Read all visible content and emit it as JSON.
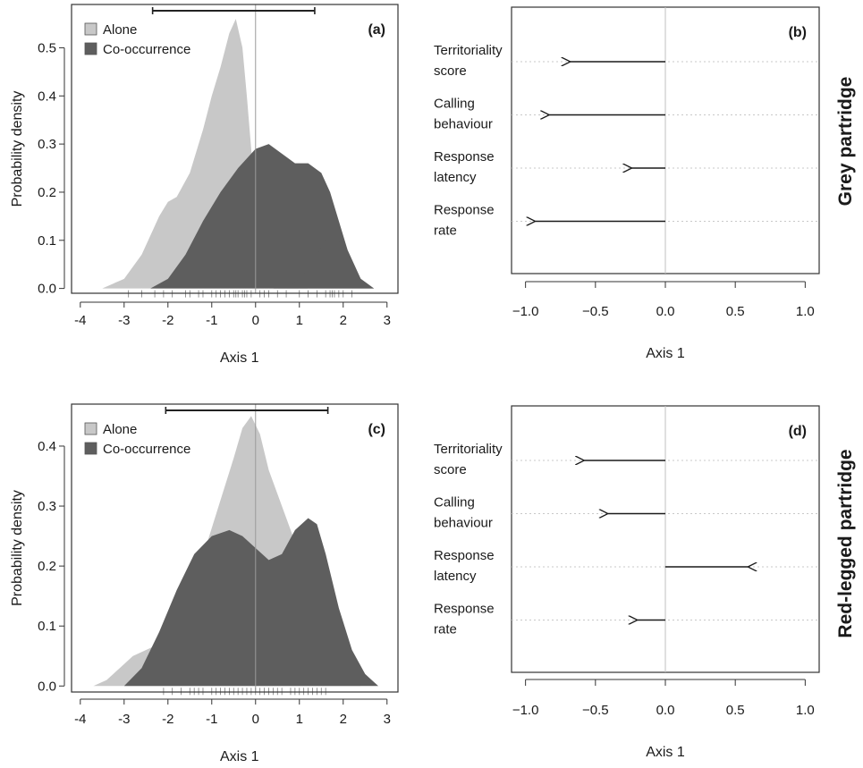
{
  "row_labels": [
    "Grey partridge",
    "Red-legged partridge"
  ],
  "chart_data": [
    {
      "id": "a",
      "panel_label": "(a)",
      "type": "area",
      "xlabel": "Axis 1",
      "ylabel": "Probability density",
      "xlim": [
        -4.2,
        3.25
      ],
      "ylim": [
        -0.01,
        0.59
      ],
      "xticks": [
        -4,
        -3,
        -2,
        -1,
        0,
        1,
        2,
        3
      ],
      "yticks": [
        0.0,
        0.1,
        0.2,
        0.3,
        0.4,
        0.5
      ],
      "ytick_labels": [
        "0.0",
        "0.1",
        "0.2",
        "0.3",
        "0.4",
        "0.5"
      ],
      "range_bar": [
        -2.35,
        1.35
      ],
      "legend_position": "top-left",
      "series": [
        {
          "name": "Alone",
          "color": "#c8c8c8",
          "x": [
            -3.5,
            -3.0,
            -2.6,
            -2.2,
            -2.0,
            -1.8,
            -1.5,
            -1.2,
            -1.0,
            -0.8,
            -0.6,
            -0.45,
            -0.3,
            -0.2,
            0.0,
            0.2,
            0.4,
            0.6,
            0.8,
            1.0,
            1.2,
            1.5
          ],
          "values": [
            0.0,
            0.02,
            0.07,
            0.15,
            0.18,
            0.19,
            0.24,
            0.33,
            0.4,
            0.46,
            0.53,
            0.56,
            0.5,
            0.4,
            0.18,
            0.07,
            0.03,
            0.012,
            0.005,
            0.002,
            0.0,
            0.0
          ]
        },
        {
          "name": "Co-occurrence",
          "color": "#5e5e5e",
          "x": [
            -2.4,
            -2.0,
            -1.6,
            -1.2,
            -0.8,
            -0.4,
            0.0,
            0.3,
            0.6,
            0.9,
            1.2,
            1.5,
            1.7,
            1.9,
            2.1,
            2.4,
            2.7
          ],
          "values": [
            0.0,
            0.02,
            0.07,
            0.14,
            0.2,
            0.25,
            0.29,
            0.3,
            0.28,
            0.26,
            0.26,
            0.24,
            0.2,
            0.14,
            0.08,
            0.02,
            0.0
          ]
        },
        {
          "name": "Co-occurrence",
          "color": "#5e5e5e",
          "x": [
            0.0,
            0.4,
            0.8,
            1.0,
            1.2,
            1.4,
            1.6,
            1.75,
            1.9,
            2.1,
            2.4,
            2.7
          ],
          "values": [
            0.0,
            0.0,
            0.005,
            0.02,
            0.04,
            0.07,
            0.1,
            0.11,
            0.1,
            0.06,
            0.02,
            0.0
          ]
        }
      ],
      "rug": [
        -2.9,
        -2.6,
        -2.3,
        -2.1,
        -1.9,
        -1.6,
        -1.5,
        -1.3,
        -1.2,
        -1.0,
        -0.9,
        -0.8,
        -0.7,
        -0.6,
        -0.5,
        -0.45,
        -0.4,
        -0.3,
        -0.25,
        -0.2,
        -0.1,
        0.1,
        0.2,
        0.3,
        0.5,
        0.7,
        1.0,
        1.2,
        1.4,
        1.6,
        1.7,
        1.75,
        1.8,
        1.9,
        2.0,
        2.2
      ]
    },
    {
      "id": "b",
      "panel_label": "(b)",
      "type": "arrow",
      "xlabel": "Axis 1",
      "xlim": [
        -1.1,
        1.1
      ],
      "xticks": [
        -1.0,
        -0.5,
        0.0,
        0.5,
        1.0
      ],
      "xtick_labels": [
        "−1.0",
        "−0.5",
        "0.0",
        "0.5",
        "1.0"
      ],
      "variables": [
        {
          "lines": [
            "Territoriality",
            "score"
          ],
          "value": -0.68
        },
        {
          "lines": [
            "Calling",
            "behaviour"
          ],
          "value": -0.83
        },
        {
          "lines": [
            "Response",
            "latency"
          ],
          "value": -0.24
        },
        {
          "lines": [
            "Response",
            "rate"
          ],
          "value": -0.93
        }
      ]
    },
    {
      "id": "c",
      "panel_label": "(c)",
      "type": "area",
      "xlabel": "Axis 1",
      "ylabel": "Probability density",
      "xlim": [
        -4.2,
        3.25
      ],
      "ylim": [
        -0.01,
        0.47
      ],
      "xticks": [
        -4,
        -3,
        -2,
        -1,
        0,
        1,
        2,
        3
      ],
      "yticks": [
        0.0,
        0.1,
        0.2,
        0.3,
        0.4
      ],
      "ytick_labels": [
        "0.0",
        "0.1",
        "0.2",
        "0.3",
        "0.4"
      ],
      "range_bar": [
        -2.05,
        1.65
      ],
      "legend_position": "top-left",
      "series": [
        {
          "name": "Alone",
          "color": "#c8c8c8",
          "x": [
            -3.7,
            -3.4,
            -3.1,
            -2.8,
            -2.5,
            -2.2,
            -2.0,
            -1.7,
            -1.4,
            -1.1,
            -0.8,
            -0.5,
            -0.3,
            -0.1,
            0.1,
            0.3,
            0.6,
            0.9,
            1.2,
            1.5,
            1.8,
            2.1,
            2.4
          ],
          "values": [
            0.0,
            0.01,
            0.03,
            0.05,
            0.06,
            0.07,
            0.07,
            0.11,
            0.17,
            0.24,
            0.31,
            0.38,
            0.43,
            0.45,
            0.42,
            0.36,
            0.3,
            0.24,
            0.16,
            0.08,
            0.03,
            0.01,
            0.0
          ]
        },
        {
          "name": "Co-occurrence",
          "color": "#5e5e5e",
          "x": [
            -3.0,
            -2.6,
            -2.2,
            -1.8,
            -1.4,
            -1.0,
            -0.6,
            -0.3,
            0.0,
            0.3,
            0.6,
            0.9,
            1.2,
            1.4,
            1.6,
            1.9,
            2.2,
            2.5,
            2.8
          ],
          "values": [
            0.0,
            0.03,
            0.09,
            0.16,
            0.22,
            0.25,
            0.26,
            0.25,
            0.23,
            0.21,
            0.22,
            0.26,
            0.28,
            0.27,
            0.22,
            0.13,
            0.06,
            0.02,
            0.0
          ]
        }
      ],
      "rug": [
        -2.1,
        -1.9,
        -1.7,
        -1.5,
        -1.4,
        -1.3,
        -1.2,
        -1.0,
        -0.9,
        -0.8,
        -0.7,
        -0.6,
        -0.5,
        -0.4,
        -0.3,
        -0.2,
        -0.1,
        0.0,
        0.1,
        0.2,
        0.3,
        0.4,
        0.5,
        0.6,
        0.8,
        0.9,
        1.0,
        1.1,
        1.2,
        1.3,
        1.4,
        1.5,
        1.6
      ]
    },
    {
      "id": "d",
      "panel_label": "(d)",
      "type": "arrow",
      "xlabel": "Axis 1",
      "xlim": [
        -1.1,
        1.1
      ],
      "xticks": [
        -1.0,
        -0.5,
        0.0,
        0.5,
        1.0
      ],
      "xtick_labels": [
        "−1.0",
        "−0.5",
        "0.0",
        "0.5",
        "1.0"
      ],
      "variables": [
        {
          "lines": [
            "Territoriality",
            "score"
          ],
          "value": -0.58
        },
        {
          "lines": [
            "Calling",
            "behaviour"
          ],
          "value": -0.41
        },
        {
          "lines": [
            "Response",
            "latency"
          ],
          "value": 0.59
        },
        {
          "lines": [
            "Response",
            "rate"
          ],
          "value": -0.2
        }
      ]
    }
  ]
}
